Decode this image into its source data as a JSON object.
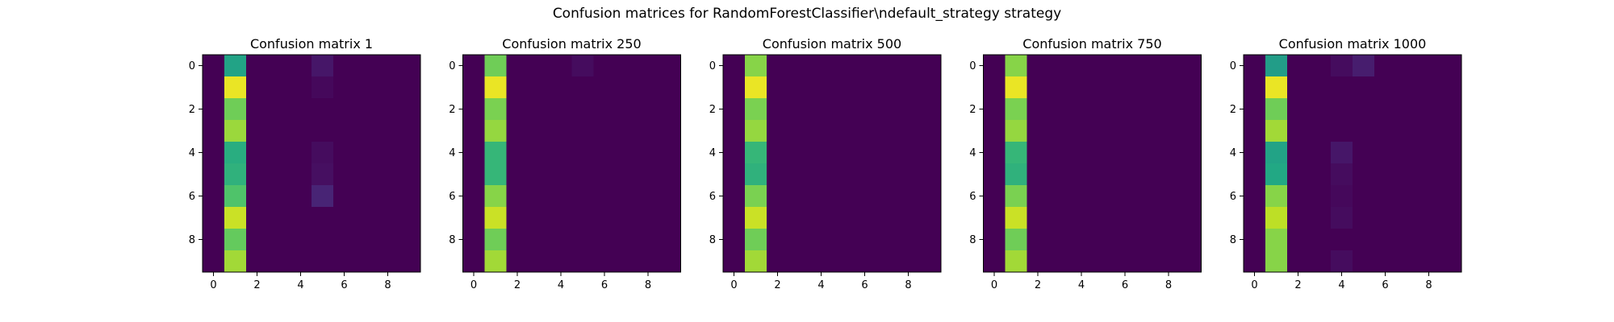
{
  "figure": {
    "suptitle": "Confusion matrices for RandomForestClassifier\\ndefault_strategy strategy"
  },
  "chart_data": [
    {
      "type": "heatmap",
      "title": "Confusion matrix 1",
      "x_ticks": [
        "0",
        "2",
        "4",
        "6",
        "8"
      ],
      "y_ticks": [
        "0",
        "2",
        "4",
        "6",
        "8"
      ],
      "xlim": [
        -0.5,
        9.5
      ],
      "ylim": [
        9.5,
        -0.5
      ],
      "colormap": "viridis",
      "matrix": [
        [
          0,
          0.58,
          0,
          0,
          0,
          0.06,
          0,
          0,
          0,
          0
        ],
        [
          0,
          0.97,
          0,
          0,
          0,
          0.02,
          0,
          0,
          0,
          0
        ],
        [
          0,
          0.78,
          0,
          0,
          0,
          0,
          0,
          0,
          0,
          0
        ],
        [
          0,
          0.85,
          0,
          0,
          0,
          0,
          0,
          0,
          0,
          0
        ],
        [
          0,
          0.62,
          0,
          0,
          0,
          0.03,
          0,
          0,
          0,
          0
        ],
        [
          0,
          0.64,
          0,
          0,
          0,
          0.04,
          0,
          0,
          0,
          0
        ],
        [
          0,
          0.72,
          0,
          0,
          0,
          0.1,
          0,
          0,
          0,
          0
        ],
        [
          0,
          0.92,
          0,
          0,
          0,
          0,
          0,
          0,
          0,
          0
        ],
        [
          0,
          0.76,
          0,
          0,
          0,
          0,
          0,
          0,
          0,
          0
        ],
        [
          0,
          0.86,
          0,
          0,
          0,
          0,
          0,
          0,
          0,
          0
        ]
      ]
    },
    {
      "type": "heatmap",
      "title": "Confusion matrix 250",
      "x_ticks": [
        "0",
        "2",
        "4",
        "6",
        "8"
      ],
      "y_ticks": [
        "0",
        "2",
        "4",
        "6",
        "8"
      ],
      "xlim": [
        -0.5,
        9.5
      ],
      "ylim": [
        9.5,
        -0.5
      ],
      "colormap": "viridis",
      "matrix": [
        [
          0,
          0.78,
          0,
          0,
          0,
          0.03,
          0,
          0,
          0,
          0
        ],
        [
          0,
          0.97,
          0,
          0,
          0,
          0,
          0,
          0,
          0,
          0
        ],
        [
          0,
          0.8,
          0,
          0,
          0,
          0,
          0,
          0,
          0,
          0
        ],
        [
          0,
          0.84,
          0,
          0,
          0,
          0,
          0,
          0,
          0,
          0
        ],
        [
          0,
          0.66,
          0,
          0,
          0,
          0,
          0,
          0,
          0,
          0
        ],
        [
          0,
          0.66,
          0,
          0,
          0,
          0,
          0,
          0,
          0,
          0
        ],
        [
          0,
          0.82,
          0,
          0,
          0,
          0,
          0,
          0,
          0,
          0
        ],
        [
          0,
          0.92,
          0,
          0,
          0,
          0,
          0,
          0,
          0,
          0
        ],
        [
          0,
          0.78,
          0,
          0,
          0,
          0,
          0,
          0,
          0,
          0
        ],
        [
          0,
          0.86,
          0,
          0,
          0,
          0,
          0,
          0,
          0,
          0
        ]
      ]
    },
    {
      "type": "heatmap",
      "title": "Confusion matrix 500",
      "x_ticks": [
        "0",
        "2",
        "4",
        "6",
        "8"
      ],
      "y_ticks": [
        "0",
        "2",
        "4",
        "6",
        "8"
      ],
      "xlim": [
        -0.5,
        9.5
      ],
      "ylim": [
        9.5,
        -0.5
      ],
      "colormap": "viridis",
      "matrix": [
        [
          0,
          0.82,
          0,
          0,
          0,
          0,
          0,
          0,
          0,
          0
        ],
        [
          0,
          0.97,
          0,
          0,
          0,
          0,
          0,
          0,
          0,
          0
        ],
        [
          0,
          0.8,
          0,
          0,
          0,
          0,
          0,
          0,
          0,
          0
        ],
        [
          0,
          0.84,
          0,
          0,
          0,
          0,
          0,
          0,
          0,
          0
        ],
        [
          0,
          0.66,
          0,
          0,
          0,
          0,
          0,
          0,
          0,
          0
        ],
        [
          0,
          0.64,
          0,
          0,
          0,
          0,
          0,
          0,
          0,
          0
        ],
        [
          0,
          0.8,
          0,
          0,
          0,
          0,
          0,
          0,
          0,
          0
        ],
        [
          0,
          0.92,
          0,
          0,
          0,
          0,
          0,
          0,
          0,
          0
        ],
        [
          0,
          0.78,
          0,
          0,
          0,
          0,
          0,
          0,
          0,
          0
        ],
        [
          0,
          0.86,
          0,
          0,
          0,
          0,
          0,
          0,
          0,
          0
        ]
      ]
    },
    {
      "type": "heatmap",
      "title": "Confusion matrix 750",
      "x_ticks": [
        "0",
        "2",
        "4",
        "6",
        "8"
      ],
      "y_ticks": [
        "0",
        "2",
        "4",
        "6",
        "8"
      ],
      "xlim": [
        -0.5,
        9.5
      ],
      "ylim": [
        9.5,
        -0.5
      ],
      "colormap": "viridis",
      "matrix": [
        [
          0,
          0.82,
          0,
          0,
          0,
          0,
          0,
          0,
          0,
          0
        ],
        [
          0,
          0.97,
          0,
          0,
          0,
          0,
          0,
          0,
          0,
          0
        ],
        [
          0,
          0.8,
          0,
          0,
          0,
          0,
          0,
          0,
          0,
          0
        ],
        [
          0,
          0.84,
          0,
          0,
          0,
          0,
          0,
          0,
          0,
          0
        ],
        [
          0,
          0.66,
          0,
          0,
          0,
          0,
          0,
          0,
          0,
          0
        ],
        [
          0,
          0.64,
          0,
          0,
          0,
          0,
          0,
          0,
          0,
          0
        ],
        [
          0,
          0.8,
          0,
          0,
          0,
          0,
          0,
          0,
          0,
          0
        ],
        [
          0,
          0.92,
          0,
          0,
          0,
          0,
          0,
          0,
          0,
          0
        ],
        [
          0,
          0.78,
          0,
          0,
          0,
          0,
          0,
          0,
          0,
          0
        ],
        [
          0,
          0.86,
          0,
          0,
          0,
          0,
          0,
          0,
          0,
          0
        ]
      ]
    },
    {
      "type": "heatmap",
      "title": "Confusion matrix 1000",
      "x_ticks": [
        "0",
        "2",
        "4",
        "6",
        "8"
      ],
      "y_ticks": [
        "0",
        "2",
        "4",
        "6",
        "8"
      ],
      "xlim": [
        -0.5,
        9.5
      ],
      "ylim": [
        9.5,
        -0.5
      ],
      "colormap": "viridis",
      "matrix": [
        [
          0,
          0.55,
          0,
          0,
          0.03,
          0.08,
          0,
          0,
          0,
          0
        ],
        [
          0,
          0.97,
          0,
          0,
          0,
          0,
          0,
          0,
          0,
          0
        ],
        [
          0,
          0.78,
          0,
          0,
          0,
          0,
          0,
          0,
          0,
          0
        ],
        [
          0,
          0.86,
          0,
          0,
          0,
          0,
          0,
          0,
          0,
          0
        ],
        [
          0,
          0.58,
          0,
          0,
          0.06,
          0,
          0,
          0,
          0,
          0
        ],
        [
          0,
          0.6,
          0,
          0,
          0.03,
          0,
          0,
          0,
          0,
          0
        ],
        [
          0,
          0.82,
          0,
          0,
          0.02,
          0,
          0,
          0,
          0,
          0
        ],
        [
          0,
          0.9,
          0,
          0,
          0.03,
          0,
          0,
          0,
          0,
          0
        ],
        [
          0,
          0.82,
          0,
          0,
          0,
          0,
          0,
          0,
          0,
          0
        ],
        [
          0,
          0.82,
          0,
          0,
          0.03,
          0,
          0,
          0,
          0,
          0
        ]
      ]
    }
  ]
}
